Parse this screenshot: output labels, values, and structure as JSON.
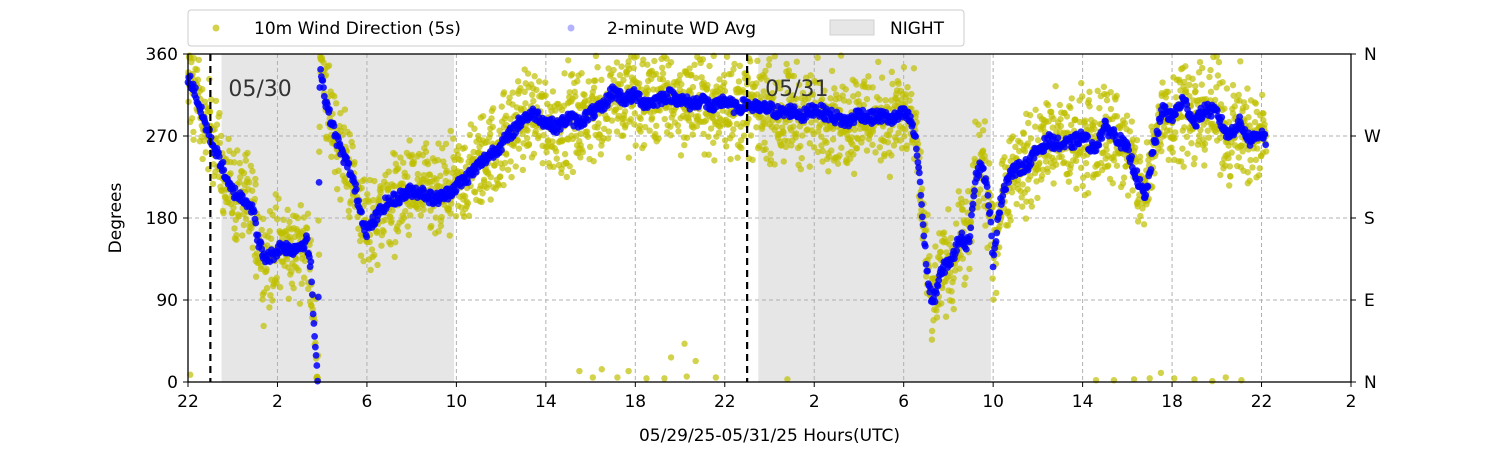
{
  "chart_data": {
    "type": "scatter",
    "xlabel": "05/29/25-05/31/25  Hours(UTC)",
    "ylabel": "Degrees",
    "x_range_hours": [
      22,
      74
    ],
    "ylim": [
      0,
      360
    ],
    "x_ticks": [
      {
        "hour": 22,
        "label": "22"
      },
      {
        "hour": 26,
        "label": "2"
      },
      {
        "hour": 30,
        "label": "6"
      },
      {
        "hour": 34,
        "label": "10"
      },
      {
        "hour": 38,
        "label": "14"
      },
      {
        "hour": 42,
        "label": "18"
      },
      {
        "hour": 46,
        "label": "22"
      },
      {
        "hour": 50,
        "label": "2"
      },
      {
        "hour": 54,
        "label": "6"
      },
      {
        "hour": 58,
        "label": "10"
      },
      {
        "hour": 62,
        "label": "14"
      },
      {
        "hour": 66,
        "label": "18"
      },
      {
        "hour": 70,
        "label": "22"
      },
      {
        "hour": 74,
        "label": "2"
      }
    ],
    "y_ticks": [
      0,
      90,
      180,
      270,
      360
    ],
    "y_tick_labels": [
      "0",
      "90",
      "180",
      "270",
      "360"
    ],
    "y2_tick_labels": [
      "N",
      "E",
      "S",
      "W",
      "N"
    ],
    "grid": true,
    "legend_placement": "top-left, above plot",
    "legend": [
      {
        "name": "10m Wind Direction (5s)",
        "kind": "marker",
        "color": "#bfbf00"
      },
      {
        "name": "2-minute WD Avg",
        "kind": "marker",
        "color": "#0000ff"
      },
      {
        "name": "NIGHT",
        "kind": "patch",
        "color": "#e6e6e6"
      }
    ],
    "night_periods": [
      [
        23.5,
        33.9
      ],
      [
        47.5,
        57.9
      ]
    ],
    "day_markers": [
      {
        "hour": 23,
        "label": "05/30"
      },
      {
        "hour": 47,
        "label": "05/31"
      }
    ],
    "series": [
      {
        "name": "2-minute WD Avg",
        "color": "#0000ff",
        "points": [
          [
            22.0,
            335
          ],
          [
            22.3,
            320
          ],
          [
            22.6,
            295
          ],
          [
            22.9,
            275
          ],
          [
            23.2,
            255
          ],
          [
            23.5,
            240
          ],
          [
            23.8,
            215
          ],
          [
            24.2,
            205
          ],
          [
            24.6,
            200
          ],
          [
            24.9,
            190
          ],
          [
            25.1,
            160
          ],
          [
            25.4,
            135
          ],
          [
            25.8,
            140
          ],
          [
            26.2,
            150
          ],
          [
            26.6,
            145
          ],
          [
            27.0,
            150
          ],
          [
            27.3,
            155
          ],
          [
            27.5,
            125
          ],
          [
            27.6,
            75
          ],
          [
            27.7,
            30
          ],
          [
            27.8,
            5
          ],
          [
            27.9,
            350
          ],
          [
            28.1,
            315
          ],
          [
            28.3,
            295
          ],
          [
            28.6,
            270
          ],
          [
            28.9,
            250
          ],
          [
            29.2,
            235
          ],
          [
            29.5,
            210
          ],
          [
            29.8,
            180
          ],
          [
            30.0,
            165
          ],
          [
            30.4,
            180
          ],
          [
            30.8,
            195
          ],
          [
            31.2,
            200
          ],
          [
            31.6,
            205
          ],
          [
            32.0,
            210
          ],
          [
            32.5,
            208
          ],
          [
            33.0,
            200
          ],
          [
            33.5,
            205
          ],
          [
            34.0,
            215
          ],
          [
            34.5,
            225
          ],
          [
            35.0,
            238
          ],
          [
            35.5,
            250
          ],
          [
            36.0,
            260
          ],
          [
            36.5,
            275
          ],
          [
            37.0,
            290
          ],
          [
            37.5,
            295
          ],
          [
            38.0,
            285
          ],
          [
            38.5,
            280
          ],
          [
            39.0,
            290
          ],
          [
            39.5,
            285
          ],
          [
            40.0,
            295
          ],
          [
            40.5,
            300
          ],
          [
            41.0,
            320
          ],
          [
            41.5,
            310
          ],
          [
            42.0,
            315
          ],
          [
            42.5,
            305
          ],
          [
            43.0,
            310
          ],
          [
            43.5,
            315
          ],
          [
            44.0,
            310
          ],
          [
            44.5,
            305
          ],
          [
            45.0,
            310
          ],
          [
            45.5,
            300
          ],
          [
            46.0,
            310
          ],
          [
            46.5,
            300
          ],
          [
            47.0,
            305
          ],
          [
            47.5,
            300
          ],
          [
            48.0,
            300
          ],
          [
            48.5,
            295
          ],
          [
            49.0,
            298
          ],
          [
            49.5,
            292
          ],
          [
            50.0,
            300
          ],
          [
            50.5,
            295
          ],
          [
            51.0,
            290
          ],
          [
            51.5,
            285
          ],
          [
            52.0,
            295
          ],
          [
            52.5,
            290
          ],
          [
            53.0,
            292
          ],
          [
            53.5,
            288
          ],
          [
            54.0,
            295
          ],
          [
            54.3,
            288
          ],
          [
            54.5,
            270
          ],
          [
            54.7,
            230
          ],
          [
            54.9,
            160
          ],
          [
            55.1,
            110
          ],
          [
            55.3,
            85
          ],
          [
            55.6,
            115
          ],
          [
            55.9,
            130
          ],
          [
            56.2,
            135
          ],
          [
            56.5,
            160
          ],
          [
            56.9,
            150
          ],
          [
            57.2,
            225
          ],
          [
            57.5,
            240
          ],
          [
            57.8,
            200
          ],
          [
            57.9,
            170
          ],
          [
            58.0,
            125
          ],
          [
            58.2,
            180
          ],
          [
            58.5,
            215
          ],
          [
            58.8,
            230
          ],
          [
            59.2,
            235
          ],
          [
            59.6,
            240
          ],
          [
            60.0,
            255
          ],
          [
            60.5,
            265
          ],
          [
            61.0,
            260
          ],
          [
            61.5,
            262
          ],
          [
            62.0,
            270
          ],
          [
            62.5,
            255
          ],
          [
            63.0,
            280
          ],
          [
            63.5,
            270
          ],
          [
            64.0,
            255
          ],
          [
            64.5,
            220
          ],
          [
            64.8,
            200
          ],
          [
            65.2,
            260
          ],
          [
            65.6,
            300
          ],
          [
            66.0,
            290
          ],
          [
            66.5,
            310
          ],
          [
            67.0,
            285
          ],
          [
            67.5,
            300
          ],
          [
            68.0,
            295
          ],
          [
            68.5,
            270
          ],
          [
            69.0,
            285
          ],
          [
            69.5,
            265
          ],
          [
            70.0,
            275
          ],
          [
            70.2,
            265
          ]
        ]
      }
    ]
  }
}
